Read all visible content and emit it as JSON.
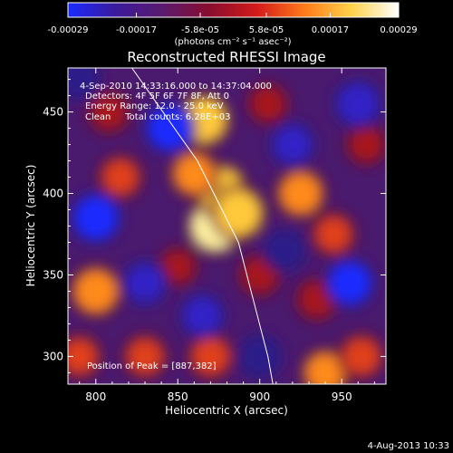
{
  "colorbar": {
    "tick_labels": [
      "-0.00029",
      "-0.00017",
      "-5.8e-05",
      "5.8e-05",
      "0.00017",
      "0.00029"
    ],
    "unit_label": "(photons cm⁻² s⁻¹ asec⁻²)",
    "colors": [
      "#1a2bff",
      "#3a1a9c",
      "#5a1a6e",
      "#8a0d2e",
      "#d41a1a",
      "#ff7a1a",
      "#ffd24a",
      "#ffffff"
    ]
  },
  "plot": {
    "title": "Reconstructed RHESSI Image",
    "xlabel": "Heliocentric X (arcsec)",
    "ylabel": "Heliocentric Y (arcsec)",
    "x_ticks": [
      "800",
      "850",
      "900",
      "950"
    ],
    "y_ticks": [
      "300",
      "350",
      "400",
      "450"
    ],
    "info_lines": [
      "4-Sep-2010 14:33:16.000 to 14:37:04.000",
      "Detectors: 4F 5F 6F 7F 8F, Att 0",
      "Energy Range: 12.0 - 25.0 keV",
      "Clean     Total counts: 6.28E+03"
    ],
    "peak_label": "Position of Peak = [887,382]",
    "background_color": "#4a1a6e",
    "limb_color": "#ffffff"
  },
  "footer": {
    "timestamp": "4-Aug-2013 10:33"
  },
  "chart_data": {
    "type": "heatmap",
    "title": "Reconstructed RHESSI Image",
    "xlabel": "Heliocentric X (arcsec)",
    "ylabel": "Heliocentric Y (arcsec)",
    "xlim": [
      783,
      977
    ],
    "ylim": [
      283,
      477
    ],
    "colorbar_range": [
      -0.00029,
      0.00029
    ],
    "colorbar_ticks": [
      -0.00029,
      -0.00017,
      -5.8e-05,
      5.8e-05,
      0.00017,
      0.00029
    ],
    "peak": [
      887,
      382
    ],
    "limb": [
      [
        822,
        477
      ],
      [
        862,
        420
      ],
      [
        887,
        370
      ],
      [
        905,
        300
      ],
      [
        908,
        283
      ]
    ],
    "blobs": [
      {
        "x": 873,
        "y": 380,
        "level": 1.0
      },
      {
        "x": 876,
        "y": 402,
        "level": 0.9
      },
      {
        "x": 866,
        "y": 445,
        "level": 0.85
      },
      {
        "x": 887,
        "y": 388,
        "level": 0.9
      },
      {
        "x": 860,
        "y": 412,
        "level": 0.7
      },
      {
        "x": 800,
        "y": 340,
        "level": 0.8
      },
      {
        "x": 815,
        "y": 410,
        "level": 0.55
      },
      {
        "x": 808,
        "y": 450,
        "level": 0.5
      },
      {
        "x": 925,
        "y": 400,
        "level": 0.75
      },
      {
        "x": 945,
        "y": 375,
        "level": 0.55
      },
      {
        "x": 940,
        "y": 290,
        "level": 0.7
      },
      {
        "x": 962,
        "y": 300,
        "level": 0.6
      },
      {
        "x": 790,
        "y": 300,
        "level": 0.55
      },
      {
        "x": 830,
        "y": 300,
        "level": 0.55
      },
      {
        "x": 870,
        "y": 300,
        "level": 0.6
      },
      {
        "x": 900,
        "y": 350,
        "level": 0.5
      },
      {
        "x": 935,
        "y": 335,
        "level": 0.5
      },
      {
        "x": 905,
        "y": 455,
        "level": 0.45
      },
      {
        "x": 850,
        "y": 355,
        "level": 0.4
      },
      {
        "x": 965,
        "y": 430,
        "level": 0.45
      },
      {
        "x": 845,
        "y": 440,
        "level": -0.8
      },
      {
        "x": 800,
        "y": 385,
        "level": -0.8
      },
      {
        "x": 955,
        "y": 345,
        "level": -0.75
      },
      {
        "x": 830,
        "y": 345,
        "level": -0.6
      },
      {
        "x": 865,
        "y": 325,
        "level": -0.6
      },
      {
        "x": 960,
        "y": 455,
        "level": -0.7
      },
      {
        "x": 920,
        "y": 430,
        "level": -0.6
      },
      {
        "x": 900,
        "y": 300,
        "level": -0.55
      },
      {
        "x": 790,
        "y": 470,
        "level": -0.5
      },
      {
        "x": 915,
        "y": 365,
        "level": -0.5
      }
    ]
  }
}
